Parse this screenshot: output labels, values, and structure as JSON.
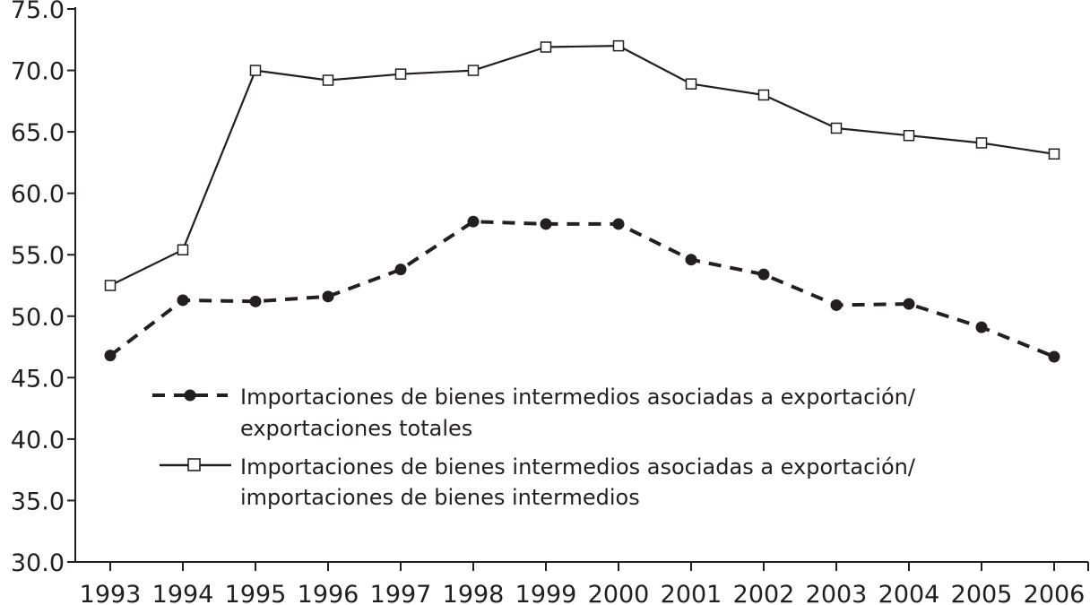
{
  "chart_data": {
    "type": "line",
    "title": "",
    "xlabel": "",
    "ylabel": "",
    "x": [
      "1993",
      "1994",
      "1995",
      "1996",
      "1997",
      "1998",
      "1999",
      "2000",
      "2001",
      "2002",
      "2003",
      "2004",
      "2005",
      "2006"
    ],
    "ylim": [
      30,
      75
    ],
    "yticks": [
      "30.0",
      "35.0",
      "40.0",
      "45.0",
      "50.0",
      "55.0",
      "60.0",
      "65.0",
      "70.0",
      "75.0"
    ],
    "grid": false,
    "legend_position": "inside-bottom-left",
    "series": [
      {
        "name_lines": [
          "Importaciones de bienes intermedios asociadas a exportación/",
          "exportaciones totales"
        ],
        "style": "dashed",
        "marker": "filled-circle",
        "color": "#231f20",
        "values": [
          46.8,
          51.3,
          51.2,
          51.6,
          53.8,
          57.7,
          57.5,
          57.5,
          54.6,
          53.4,
          50.9,
          51.0,
          49.1,
          46.7
        ]
      },
      {
        "name_lines": [
          "Importaciones de bienes intermedios asociadas a exportación/",
          "importaciones de bienes intermedios"
        ],
        "style": "solid",
        "marker": "open-square",
        "color": "#231f20",
        "values": [
          52.5,
          55.4,
          70.0,
          69.2,
          69.7,
          70.0,
          71.9,
          72.0,
          68.9,
          68.0,
          65.3,
          64.7,
          64.1,
          63.2
        ]
      }
    ]
  }
}
